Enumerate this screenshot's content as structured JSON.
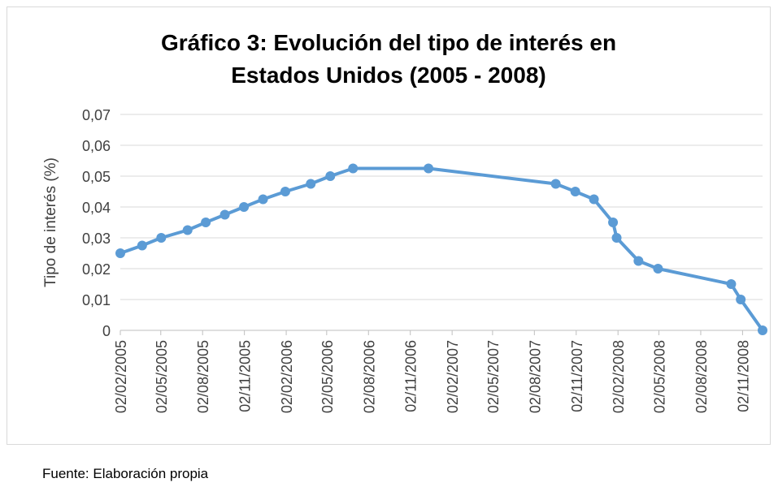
{
  "chart_data": {
    "type": "line",
    "title": [
      "Gráfico 3: Evolución del tipo de interés en",
      "Estados Unidos (2005 - 2008)"
    ],
    "y_label": "Tipo de interés (%)",
    "source": "Fuente: Elaboración propia",
    "x": [
      "2005-02-02",
      "2005-03-22",
      "2005-05-03",
      "2005-06-30",
      "2005-08-09",
      "2005-09-20",
      "2005-11-01",
      "2005-12-13",
      "2006-01-31",
      "2006-03-28",
      "2006-05-10",
      "2006-06-29",
      "2006-12-12",
      "2007-09-18",
      "2007-10-31",
      "2007-12-11",
      "2008-01-22",
      "2008-01-30",
      "2008-03-18",
      "2008-04-30",
      "2008-10-08",
      "2008-10-29",
      "2008-12-16"
    ],
    "series": [
      {
        "name": "Tipo de interés",
        "color": "#5b9bd5",
        "values": [
          0.025,
          0.0275,
          0.03,
          0.0325,
          0.035,
          0.0375,
          0.04,
          0.0425,
          0.045,
          0.0475,
          0.05,
          0.0525,
          0.0525,
          0.0475,
          0.045,
          0.0425,
          0.035,
          0.03,
          0.0225,
          0.02,
          0.015,
          0.01,
          0
        ]
      }
    ],
    "xlim": [
      "2005-02-02",
      "2008-12-16"
    ],
    "xticks": [
      {
        "value": "2005-02-02",
        "label": "02/02/2005"
      },
      {
        "value": "2005-05-02",
        "label": "02/05/2005"
      },
      {
        "value": "2005-08-02",
        "label": "02/08/2005"
      },
      {
        "value": "2005-11-02",
        "label": "02/11/2005"
      },
      {
        "value": "2006-02-02",
        "label": "02/02/2006"
      },
      {
        "value": "2006-05-02",
        "label": "02/05/2006"
      },
      {
        "value": "2006-08-02",
        "label": "02/08/2006"
      },
      {
        "value": "2006-11-02",
        "label": "02/11/2006"
      },
      {
        "value": "2007-02-02",
        "label": "02/02/2007"
      },
      {
        "value": "2007-05-02",
        "label": "02/05/2007"
      },
      {
        "value": "2007-08-02",
        "label": "02/08/2007"
      },
      {
        "value": "2007-11-02",
        "label": "02/11/2007"
      },
      {
        "value": "2008-02-02",
        "label": "02/02/2008"
      },
      {
        "value": "2008-05-02",
        "label": "02/05/2008"
      },
      {
        "value": "2008-08-02",
        "label": "02/08/2008"
      },
      {
        "value": "2008-11-02",
        "label": "02/11/2008"
      }
    ],
    "ylim": [
      0,
      0.07
    ],
    "yticks": [
      0,
      {
        "value": 0.01,
        "label": "0,01"
      },
      {
        "value": 0.02,
        "label": "0,02"
      },
      {
        "value": 0.03,
        "label": "0,03"
      },
      {
        "value": 0.04,
        "label": "0,04"
      },
      {
        "value": 0.05,
        "label": "0,05"
      },
      {
        "value": 0.06,
        "label": "0,06"
      },
      {
        "value": 0.07,
        "label": "0,07"
      }
    ],
    "grid": true
  }
}
